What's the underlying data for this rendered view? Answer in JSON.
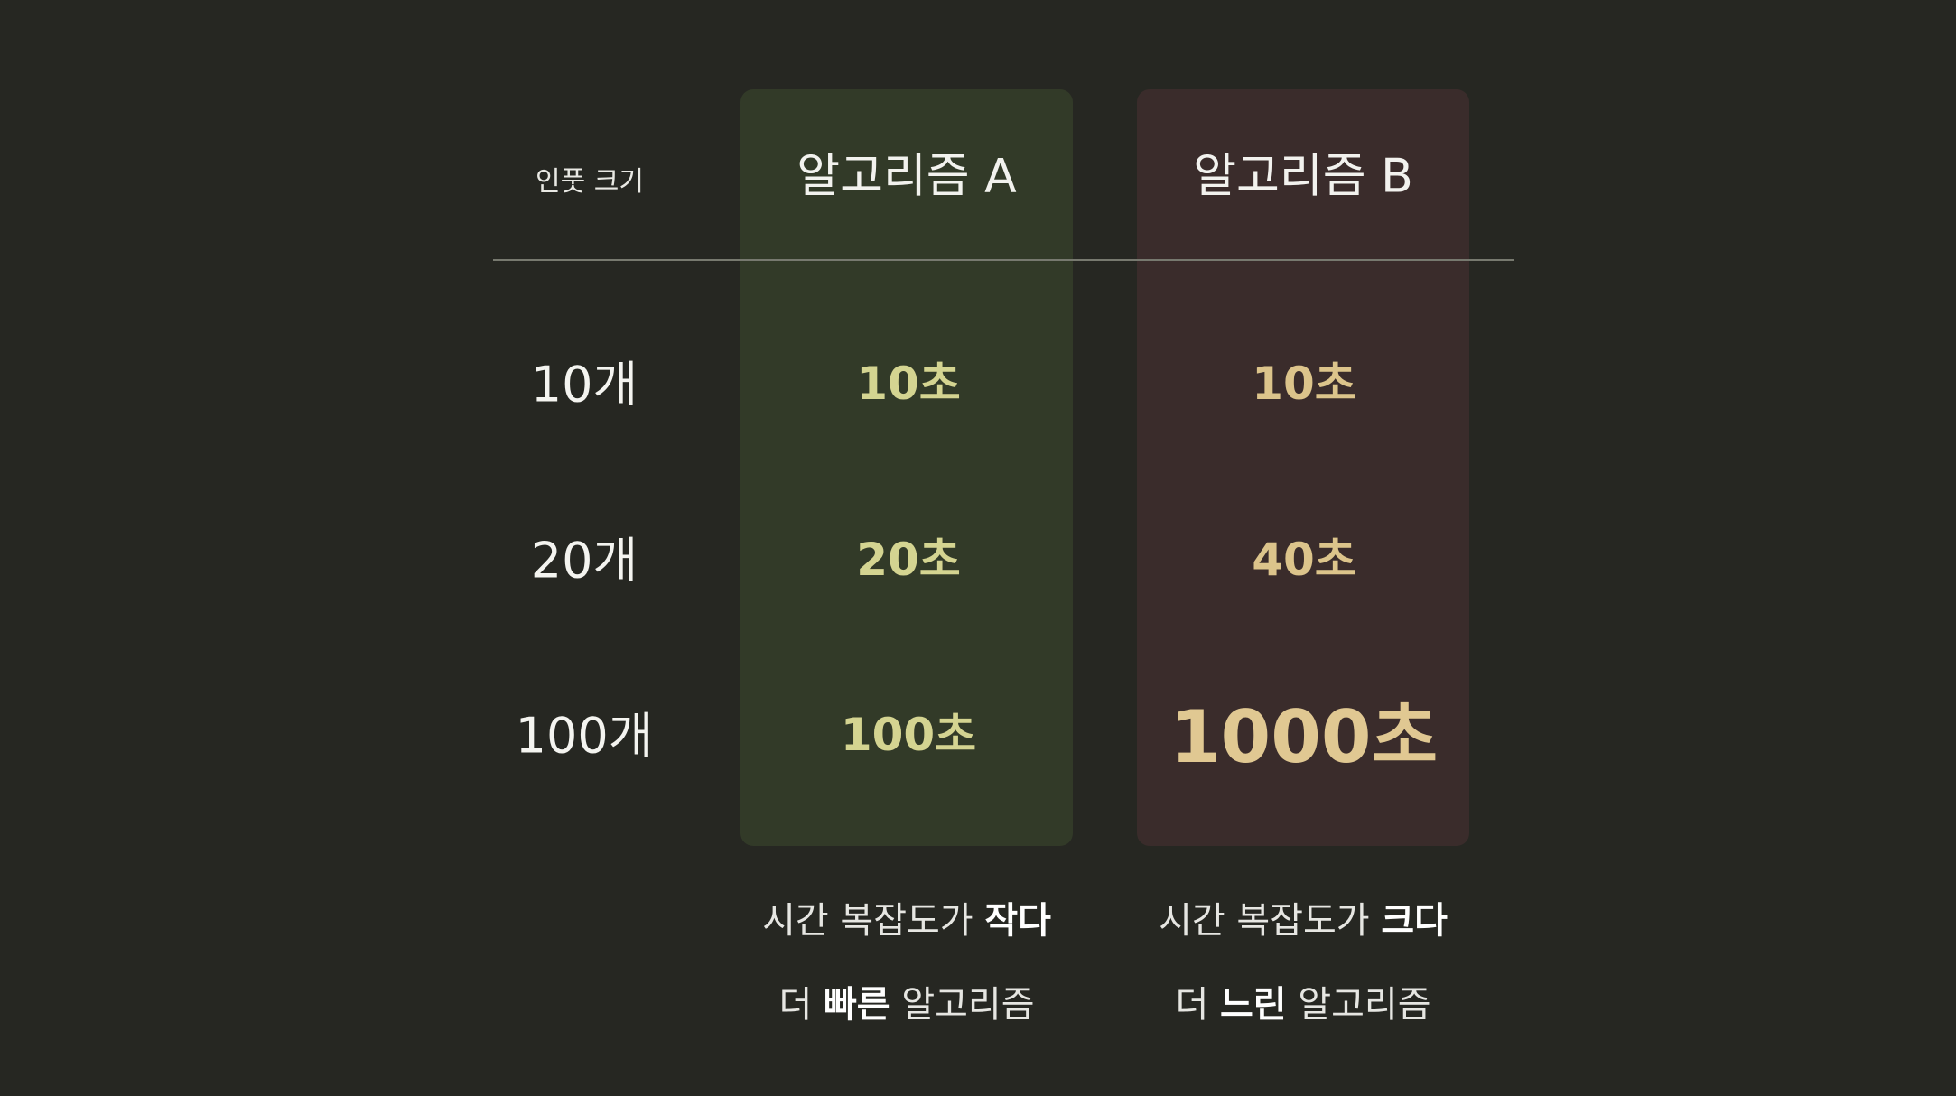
{
  "table": {
    "input_header": "인풋 크기",
    "columns": [
      {
        "header": "알고리즘 A",
        "values": [
          "10초",
          "20초",
          "100초"
        ],
        "caption_line1_prefix": "시간 복잡도가 ",
        "caption_line1_emph": "작다",
        "caption_line2_prefix": "더 ",
        "caption_line2_emph": "빠른",
        "caption_line2_suffix": " 알고리즘",
        "color": "#323a28"
      },
      {
        "header": "알고리즘 B",
        "values": [
          "10초",
          "40초",
          "1000초"
        ],
        "caption_line1_prefix": "시간 복잡도가 ",
        "caption_line1_emph": "크다",
        "caption_line2_prefix": "더 ",
        "caption_line2_emph": "느린",
        "caption_line2_suffix": " 알고리즘",
        "color": "#3a2c2b"
      }
    ],
    "rows": [
      "10개",
      "20개",
      "100개"
    ]
  }
}
